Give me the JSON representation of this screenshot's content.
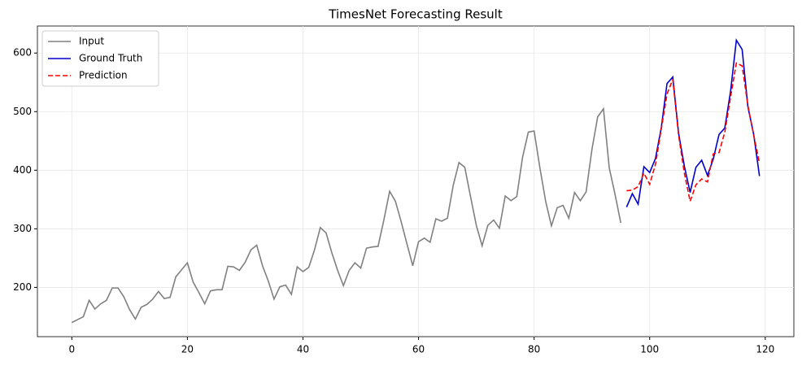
{
  "chart_data": {
    "type": "line",
    "title": "TimesNet Forecasting Result",
    "xlim": [
      -5.95,
      124.95
    ],
    "ylim": [
      115.9,
      646.1
    ],
    "xticks": [
      0,
      20,
      40,
      60,
      80,
      100,
      120
    ],
    "yticks": [
      200,
      300,
      400,
      500,
      600
    ],
    "grid": true,
    "legend": "upper left",
    "series": [
      {
        "name": "Input",
        "color": "#808080",
        "dash": "solid",
        "x_start": 0,
        "values": [
          140,
          145,
          150,
          178,
          163,
          172,
          178,
          199,
          199,
          184,
          162,
          146,
          166,
          171,
          180,
          193,
          181,
          183,
          218,
          230,
          242,
          209,
          191,
          172,
          194,
          196,
          196,
          236,
          235,
          229,
          243,
          264,
          272,
          237,
          211,
          180,
          201,
          204,
          188,
          235,
          227,
          234,
          264,
          302,
          293,
          259,
          229,
          203,
          229,
          242,
          233,
          267,
          269,
          270,
          315,
          364,
          347,
          312,
          274,
          237,
          278,
          284,
          277,
          317,
          313,
          318,
          374,
          413,
          405,
          355,
          306,
          271,
          306,
          315,
          301,
          356,
          348,
          355,
          422,
          465,
          467,
          404,
          347,
          305,
          336,
          340,
          318,
          362,
          348,
          363,
          435,
          491,
          505,
          404,
          359,
          310
        ]
      },
      {
        "name": "Ground Truth",
        "color": "#0000cc",
        "dash": "solid",
        "x_start": 96,
        "values": [
          337,
          360,
          342,
          406,
          396,
          420,
          472,
          548,
          559,
          463,
          407,
          362,
          405,
          417,
          391,
          419,
          461,
          472,
          535,
          622,
          606,
          508,
          461,
          390
        ]
      },
      {
        "name": "Prediction",
        "color": "#ff0000",
        "dash": "dashed",
        "x_start": 96,
        "values": [
          365,
          366,
          372,
          395,
          376,
          410,
          470,
          530,
          555,
          460,
          395,
          347,
          375,
          385,
          380,
          428,
          430,
          465,
          525,
          583,
          578,
          510,
          460,
          412
        ]
      }
    ]
  }
}
